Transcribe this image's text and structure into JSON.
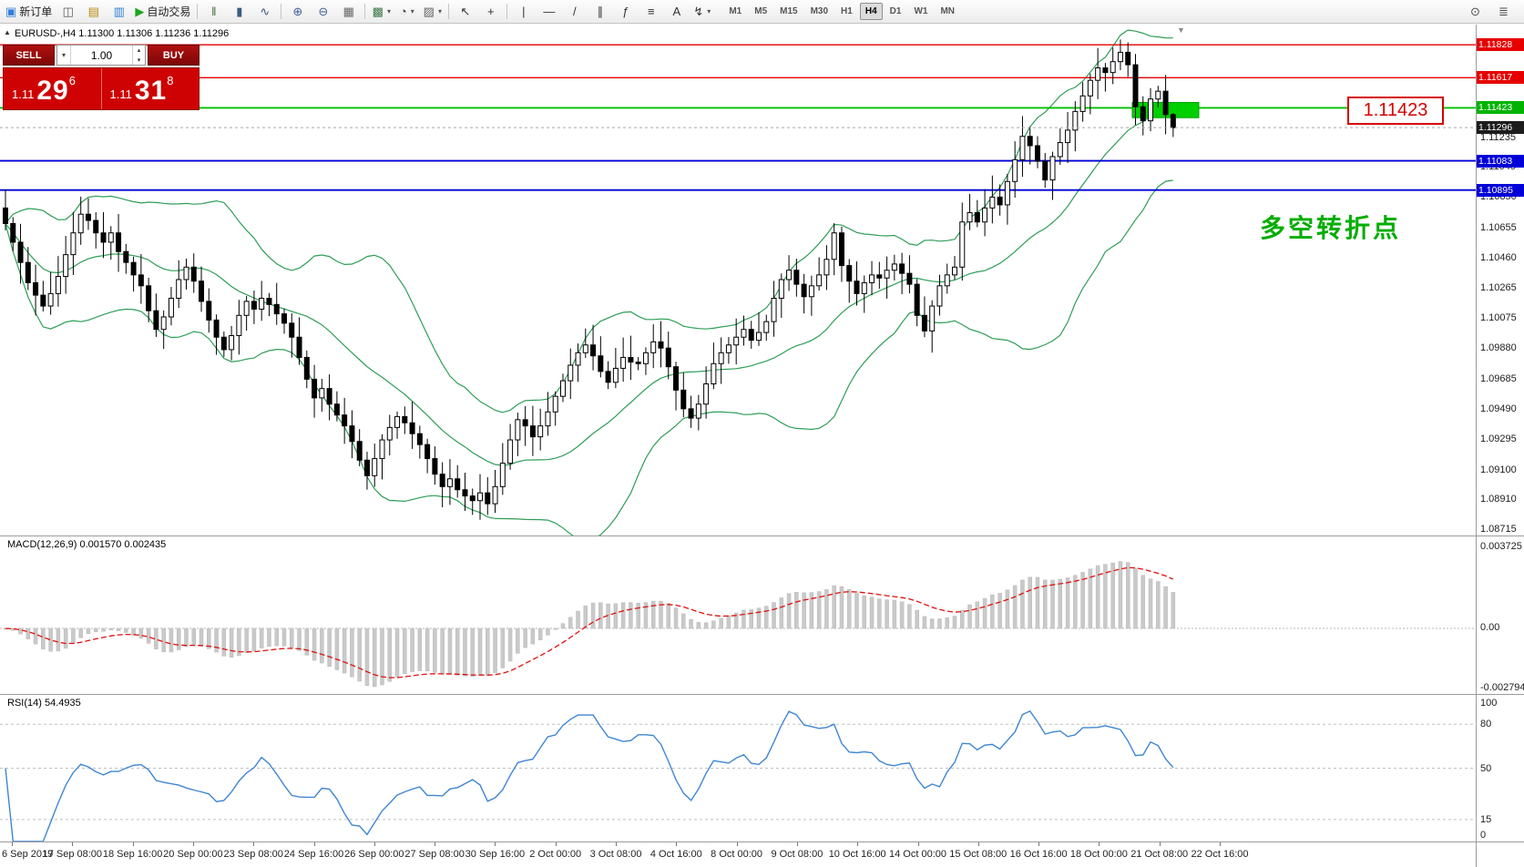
{
  "toolbar": {
    "buttons": [
      {
        "name": "new-order-button",
        "glyph": "▣",
        "color": "#2f7ed8",
        "label": "新订单"
      },
      {
        "name": "chart-windows-button",
        "glyph": "◫",
        "color": "#5a5a5a"
      },
      {
        "name": "profiles-button",
        "glyph": "▤",
        "color": "#b8860b"
      },
      {
        "name": "market-watch-button",
        "glyph": "▥",
        "color": "#2f7ed8"
      },
      {
        "name": "autotrading-button",
        "glyph": "▶",
        "color": "#1fa41f",
        "label": "自动交易"
      },
      {
        "name": "sep"
      },
      {
        "name": "bar-chart-button",
        "glyph": "ǁ",
        "color": "#3c6e3c"
      },
      {
        "name": "candlestick-chart-button",
        "glyph": "▮",
        "color": "#3c5a7d"
      },
      {
        "name": "line-chart-button",
        "glyph": "∿",
        "color": "#3c5a7d"
      },
      {
        "name": "sep"
      },
      {
        "name": "zoom-in-button",
        "glyph": "⊕",
        "color": "#44609a"
      },
      {
        "name": "zoom-out-button",
        "glyph": "⊖",
        "color": "#44609a"
      },
      {
        "name": "tile-windows-button",
        "glyph": "▦",
        "color": "#666"
      },
      {
        "name": "sep"
      },
      {
        "name": "new-chart-button",
        "glyph": "▩",
        "color": "#3d7a46",
        "dropdown": true
      },
      {
        "name": "period-button",
        "glyph": "◔",
        "color": "#444",
        "dropdown": true
      },
      {
        "name": "templates-button",
        "glyph": "▨",
        "color": "#666",
        "dropdown": true
      },
      {
        "name": "sep"
      },
      {
        "name": "cursor-button",
        "glyph": "↖",
        "color": "#333"
      },
      {
        "name": "crosshair-button",
        "glyph": "+",
        "color": "#333"
      },
      {
        "name": "sep"
      },
      {
        "name": "vertical-line-button",
        "glyph": "|",
        "color": "#333"
      },
      {
        "name": "horizontal-line-button",
        "glyph": "—",
        "color": "#333"
      },
      {
        "name": "trendline-button",
        "glyph": "/",
        "color": "#333"
      },
      {
        "name": "channel-button",
        "glyph": "∥",
        "color": "#333"
      },
      {
        "name": "fibonacci-button",
        "glyph": "ƒ",
        "color": "#333"
      },
      {
        "name": "shapes-button",
        "glyph": "≡",
        "color": "#333"
      },
      {
        "name": "text-button",
        "glyph": "A",
        "color": "#333"
      },
      {
        "name": "arrows-button",
        "glyph": "↯",
        "color": "#333",
        "dropdown": true
      }
    ],
    "timeframes": [
      "M1",
      "M5",
      "M15",
      "M30",
      "H1",
      "H4",
      "D1",
      "W1",
      "MN"
    ],
    "active_timeframe": "H4",
    "right_buttons": [
      {
        "name": "search-button",
        "glyph": "⊙"
      },
      {
        "name": "menu-button",
        "glyph": "≣"
      }
    ]
  },
  "chart": {
    "symbol_info": "EURUSD-,H4 1.11300 1.11306 1.11236 1.11296",
    "collapse_glyph": "▲",
    "shift_marker_glyph": "▼",
    "annotation_price_label": "1.11423",
    "annotation_note": "多空转折点",
    "annotation_note_color": "#00ad00",
    "highlight_rect_color": "#00cf00",
    "price_axis_labels": [
      "1.11235",
      "1.11045",
      "1.10850",
      "1.10655",
      "1.10460",
      "1.10265",
      "1.10075",
      "1.09880",
      "1.09685",
      "1.09490",
      "1.09295",
      "1.09100",
      "1.08910",
      "1.08715"
    ],
    "price_tags": [
      {
        "text": "1.11828",
        "value": 1.11828,
        "color": "#e60000"
      },
      {
        "text": "1.11617",
        "value": 1.11617,
        "color": "#e60000"
      },
      {
        "text": "1.11423",
        "value": 1.11423,
        "color": "#00b400"
      },
      {
        "text": "1.11296",
        "value": 1.11296,
        "color": "#1c1c1c"
      },
      {
        "text": "1.11083",
        "value": 1.11083,
        "color": "#0000d8"
      },
      {
        "text": "1.10895",
        "value": 1.10895,
        "color": "#0000d8"
      }
    ],
    "hlines": [
      {
        "value": 1.11828,
        "color": "#e60000",
        "width": 1.4
      },
      {
        "value": 1.11617,
        "color": "#e60000",
        "width": 1.4
      },
      {
        "value": 1.11423,
        "color": "#00c000",
        "width": 1.8
      },
      {
        "value": 1.11083,
        "color": "#0000d8",
        "width": 1.8
      },
      {
        "value": 1.10895,
        "color": "#0000d8",
        "width": 1.8
      }
    ],
    "current_price": {
      "text": "1.11296",
      "value": 1.11296
    }
  },
  "trade_panel": {
    "sell_label": "SELL",
    "buy_label": "BUY",
    "volume": "1.00",
    "sell_price_main": "1.11",
    "sell_price_big": "29",
    "sell_price_pip": "6",
    "buy_price_main": "1.11",
    "buy_price_big": "31",
    "buy_price_pip": "8"
  },
  "macd": {
    "label": "MACD(12,26,9) 0.001570 0.002435",
    "axis": [
      "0.003725",
      "0.00",
      "-0.002794"
    ],
    "histogram_color": "#c9c9c9",
    "signal_color": "#e01010"
  },
  "rsi": {
    "label": "RSI(14) 54.4935",
    "axis": [
      "100",
      "80",
      "50",
      "15",
      "0"
    ],
    "levels": [
      80,
      50,
      15
    ],
    "line_color": "#3f86d2"
  },
  "time_axis": {
    "labels": [
      "6 Sep 2019",
      "17 Sep 08:00",
      "18 Sep 16:00",
      "20 Sep 00:00",
      "23 Sep 08:00",
      "24 Sep 16:00",
      "26 Sep 00:00",
      "27 Sep 08:00",
      "30 Sep 16:00",
      "2 Oct 00:00",
      "3 Oct 08:00",
      "4 Oct 16:00",
      "8 Oct 00:00",
      "9 Oct 08:00",
      "10 Oct 16:00",
      "14 Oct 00:00",
      "15 Oct 08:00",
      "16 Oct 16:00",
      "18 Oct 00:00",
      "21 Oct 08:00",
      "22 Oct 16:00"
    ]
  },
  "chart_data": {
    "type": "candlestick",
    "symbol": "EURUSD-",
    "timeframe": "H4",
    "ohlc_display": {
      "open": "1.11300",
      "high": "1.11306",
      "low": "1.11236",
      "close": "1.11296"
    },
    "price_range": [
      1.08676,
      1.11958
    ],
    "bollinger": {
      "period": 20,
      "deviation": 2,
      "color": "#2e9e57"
    },
    "macd_params": {
      "fast": 12,
      "slow": 26,
      "signal": 9,
      "main_value": 0.00157,
      "signal_value": 0.002435
    },
    "rsi_params": {
      "period": 14,
      "value": 54.4935
    },
    "closes": [
      1.1068,
      1.1056,
      1.1043,
      1.103,
      1.1022,
      1.1015,
      1.1023,
      1.1034,
      1.1048,
      1.1062,
      1.1074,
      1.107,
      1.1062,
      1.1056,
      1.1062,
      1.105,
      1.1043,
      1.1035,
      1.1028,
      1.1012,
      1.1,
      1.1008,
      1.102,
      1.1032,
      1.104,
      1.1031,
      1.1018,
      1.1006,
      1.0995,
      1.0987,
      1.0996,
      1.1009,
      1.1018,
      1.1013,
      1.102,
      1.1016,
      1.101,
      1.1004,
      1.0995,
      1.0982,
      1.0968,
      1.0956,
      1.0962,
      1.0952,
      1.0945,
      1.0938,
      1.0928,
      1.0916,
      1.0906,
      1.0917,
      1.0929,
      1.0937,
      1.0944,
      1.094,
      1.0933,
      1.0926,
      1.0917,
      1.0907,
      1.0899,
      1.0904,
      1.0897,
      1.0893,
      1.089,
      1.0895,
      1.0888,
      1.0899,
      1.0914,
      1.0929,
      1.0942,
      1.0938,
      1.0931,
      1.0938,
      1.0947,
      1.0957,
      1.0967,
      1.0977,
      1.0985,
      1.099,
      1.0983,
      1.0973,
      1.0966,
      1.0975,
      1.0982,
      1.0979,
      1.0978,
      1.0985,
      1.0992,
      1.0988,
      1.0976,
      1.0961,
      1.0949,
      1.0943,
      1.0952,
      1.0965,
      1.0978,
      1.0985,
      1.099,
      1.0995,
      1.1,
      1.0993,
      1.0998,
      1.1005,
      1.102,
      1.1032,
      1.1038,
      1.1029,
      1.1021,
      1.1028,
      1.1035,
      1.1045,
      1.1062,
      1.1041,
      1.1031,
      1.1023,
      1.103,
      1.1035,
      1.1033,
      1.1038,
      1.1042,
      1.1036,
      1.1029,
      1.1009,
      1.0999,
      1.1015,
      1.1028,
      1.1035,
      1.104,
      1.1069,
      1.1075,
      1.1069,
      1.1078,
      1.1085,
      1.108,
      1.1095,
      1.1109,
      1.1124,
      1.1118,
      1.1108,
      1.1096,
      1.1111,
      1.112,
      1.1128,
      1.114,
      1.115,
      1.116,
      1.1168,
      1.1165,
      1.1172,
      1.1178,
      1.117,
      1.1143,
      1.1134,
      1.1148,
      1.1153,
      1.1138,
      1.11296
    ]
  }
}
